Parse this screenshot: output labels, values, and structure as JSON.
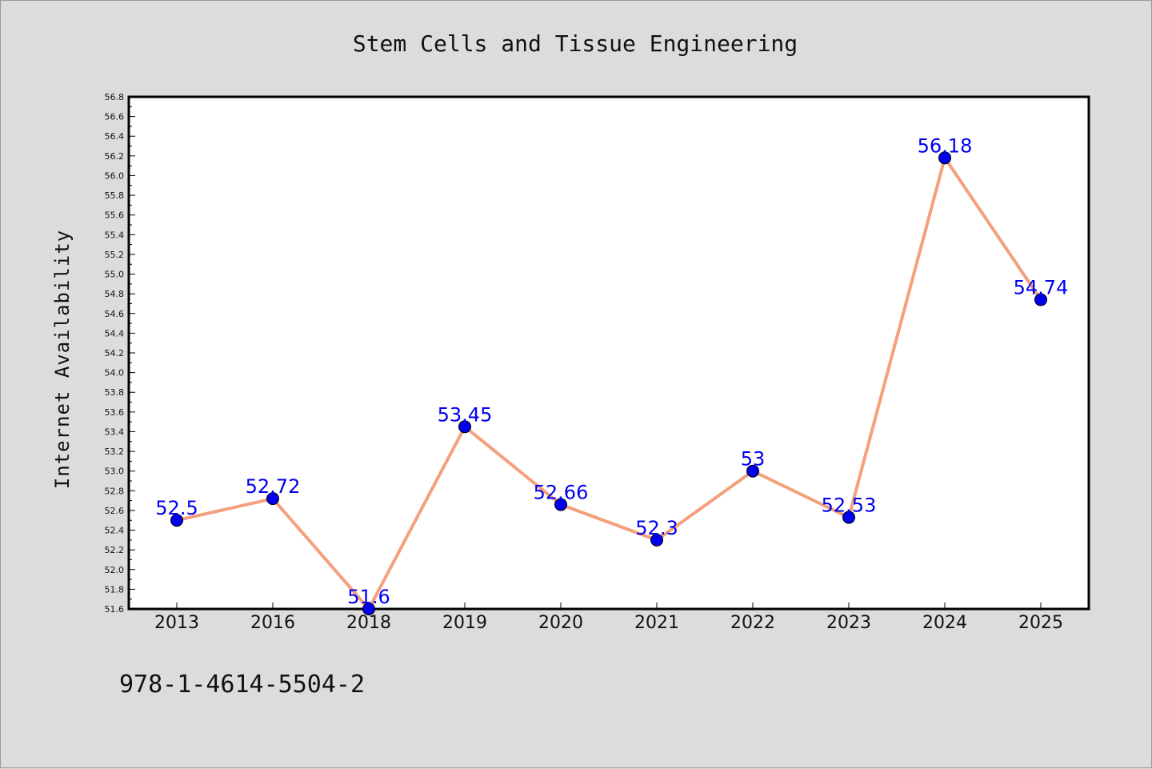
{
  "chart_data": {
    "type": "line",
    "title": "Stem Cells and Tissue Engineering",
    "xlabel": "",
    "ylabel": "Internet Availability",
    "categories": [
      "2013",
      "2016",
      "2018",
      "2019",
      "2020",
      "2021",
      "2022",
      "2023",
      "2024",
      "2025"
    ],
    "values": [
      52.5,
      52.72,
      51.6,
      53.45,
      52.66,
      52.3,
      53,
      52.53,
      56.18,
      54.74
    ],
    "data_labels": [
      "52.5",
      "52.72",
      "51.6",
      "53.45",
      "52.66",
      "52.3",
      "53",
      "52.53",
      "56.18",
      "54.74"
    ],
    "ylim": [
      51.6,
      56.8
    ],
    "yticks": [
      "51.6",
      "51.8",
      "52.0",
      "52.2",
      "52.4",
      "52.6",
      "52.8",
      "53.0",
      "53.2",
      "53.4",
      "53.6",
      "53.8",
      "54.0",
      "54.2",
      "54.4",
      "54.6",
      "54.8",
      "55.0",
      "55.2",
      "55.4",
      "55.6",
      "55.8",
      "56.0",
      "56.2",
      "56.4",
      "56.6",
      "56.8"
    ],
    "grid": false,
    "legend": "none",
    "colors": {
      "line": "#f4a07c",
      "marker": "#0000ee",
      "data_label": "#0000ee",
      "background": "#dcdcdc",
      "plot_area": "#ffffff"
    }
  },
  "footer": {
    "text": "978-1-4614-5504-2"
  }
}
